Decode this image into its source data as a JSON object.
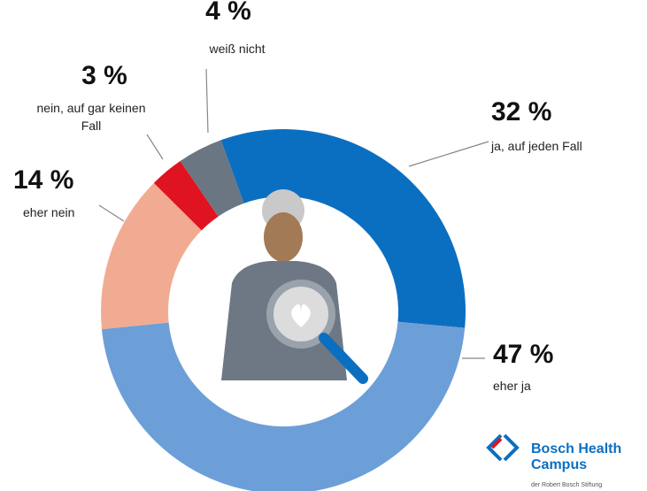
{
  "chart_data": {
    "type": "donut",
    "categories": [
      "ja, auf jeden Fall",
      "eher ja",
      "eher nein",
      "nein, auf gar keinen Fall",
      "weiß nicht"
    ],
    "values": [
      32,
      47,
      14,
      3,
      4
    ],
    "value_labels": [
      "32 %",
      "47 %",
      "14 %",
      "3 %",
      "4 %"
    ],
    "colors": [
      "#0b6fc1",
      "#6c9fd8",
      "#f2ab93",
      "#e01420",
      "#6b7683"
    ]
  },
  "logo": {
    "name": "Bosch Health Campus",
    "subtitle": "der Robert Bosch Stiftung"
  }
}
